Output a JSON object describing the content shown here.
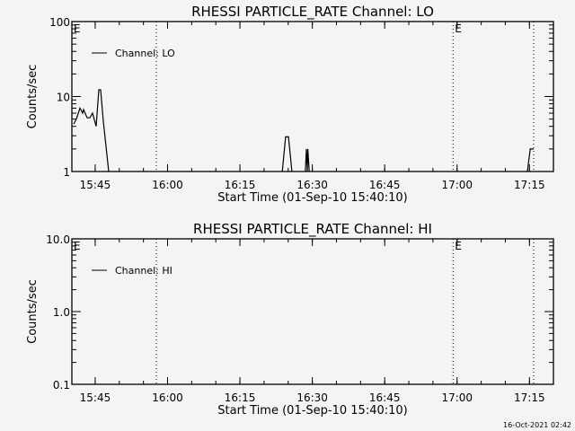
{
  "footer_timestamp": "16-Oct-2021 02:42",
  "chart_data": [
    {
      "type": "line",
      "title": "RHESSI PARTICLE_RATE Channel: LO",
      "xlabel": "Start Time (01-Sep-10 15:40:10)",
      "ylabel": "Counts/sec",
      "yscale": "log",
      "ylim": [
        1,
        100
      ],
      "xlim_minutes_since_start": [
        0,
        99.8
      ],
      "x_tick_labels": [
        "15:45",
        "16:00",
        "16:15",
        "16:30",
        "16:45",
        "17:00",
        "17:15"
      ],
      "x_tick_minutes": [
        4.83,
        19.83,
        34.83,
        49.83,
        64.83,
        79.83,
        94.83
      ],
      "y_tick_labels": [
        "1",
        "10",
        "100"
      ],
      "y_tick_values": [
        1,
        10,
        100
      ],
      "legend": {
        "entries": [
          "Channel: LO"
        ],
        "placement": "top-left"
      },
      "markers": [
        {
          "minute": 17.5,
          "label": ""
        },
        {
          "minute": 79.0,
          "label": "E"
        },
        {
          "minute": 95.7,
          "label": ""
        }
      ],
      "start_marker_label": "E",
      "series": [
        {
          "name": "Channel: LO",
          "segments": [
            [
              [
                0.37,
                4.3
              ],
              [
                0.93,
                5
              ],
              [
                1.68,
                7
              ],
              [
                2.23,
                6
              ],
              [
                2.42,
                6.7
              ],
              [
                3.17,
                5.2
              ],
              [
                3.72,
                5.2
              ],
              [
                4.28,
                6
              ],
              [
                5.03,
                4
              ],
              [
                5.59,
                12.3
              ],
              [
                5.96,
                12.3
              ],
              [
                6.52,
                4.7
              ],
              [
                7.64,
                1
              ]
            ],
            [
              [
                43.6,
                1
              ],
              [
                44.3,
                2.9
              ],
              [
                44.9,
                2.9
              ],
              [
                45.6,
                1
              ]
            ],
            [
              [
                48.4,
                1
              ],
              [
                48.6,
                2
              ],
              [
                48.8,
                1
              ],
              [
                48.9,
                2
              ],
              [
                49.2,
                1
              ]
            ],
            [
              [
                94.4,
                1
              ],
              [
                95.0,
                2
              ],
              [
                95.7,
                2
              ]
            ]
          ]
        }
      ]
    },
    {
      "type": "line",
      "title": "RHESSI PARTICLE_RATE Channel: HI",
      "xlabel": "Start Time (01-Sep-10 15:40:10)",
      "ylabel": "Counts/sec",
      "yscale": "log",
      "ylim": [
        0.1,
        10
      ],
      "xlim_minutes_since_start": [
        0,
        99.8
      ],
      "x_tick_labels": [
        "15:45",
        "16:00",
        "16:15",
        "16:30",
        "16:45",
        "17:00",
        "17:15"
      ],
      "x_tick_minutes": [
        4.83,
        19.83,
        34.83,
        49.83,
        64.83,
        79.83,
        94.83
      ],
      "y_tick_labels": [
        "0.1",
        "1.0",
        "10.0"
      ],
      "y_tick_values": [
        0.1,
        1,
        10
      ],
      "legend": {
        "entries": [
          "Channel: HI"
        ],
        "placement": "top-left"
      },
      "markers": [
        {
          "minute": 17.5,
          "label": ""
        },
        {
          "minute": 79.0,
          "label": "E"
        },
        {
          "minute": 95.7,
          "label": ""
        }
      ],
      "start_marker_label": "E",
      "series": [
        {
          "name": "Channel: HI",
          "segments": []
        }
      ]
    }
  ]
}
